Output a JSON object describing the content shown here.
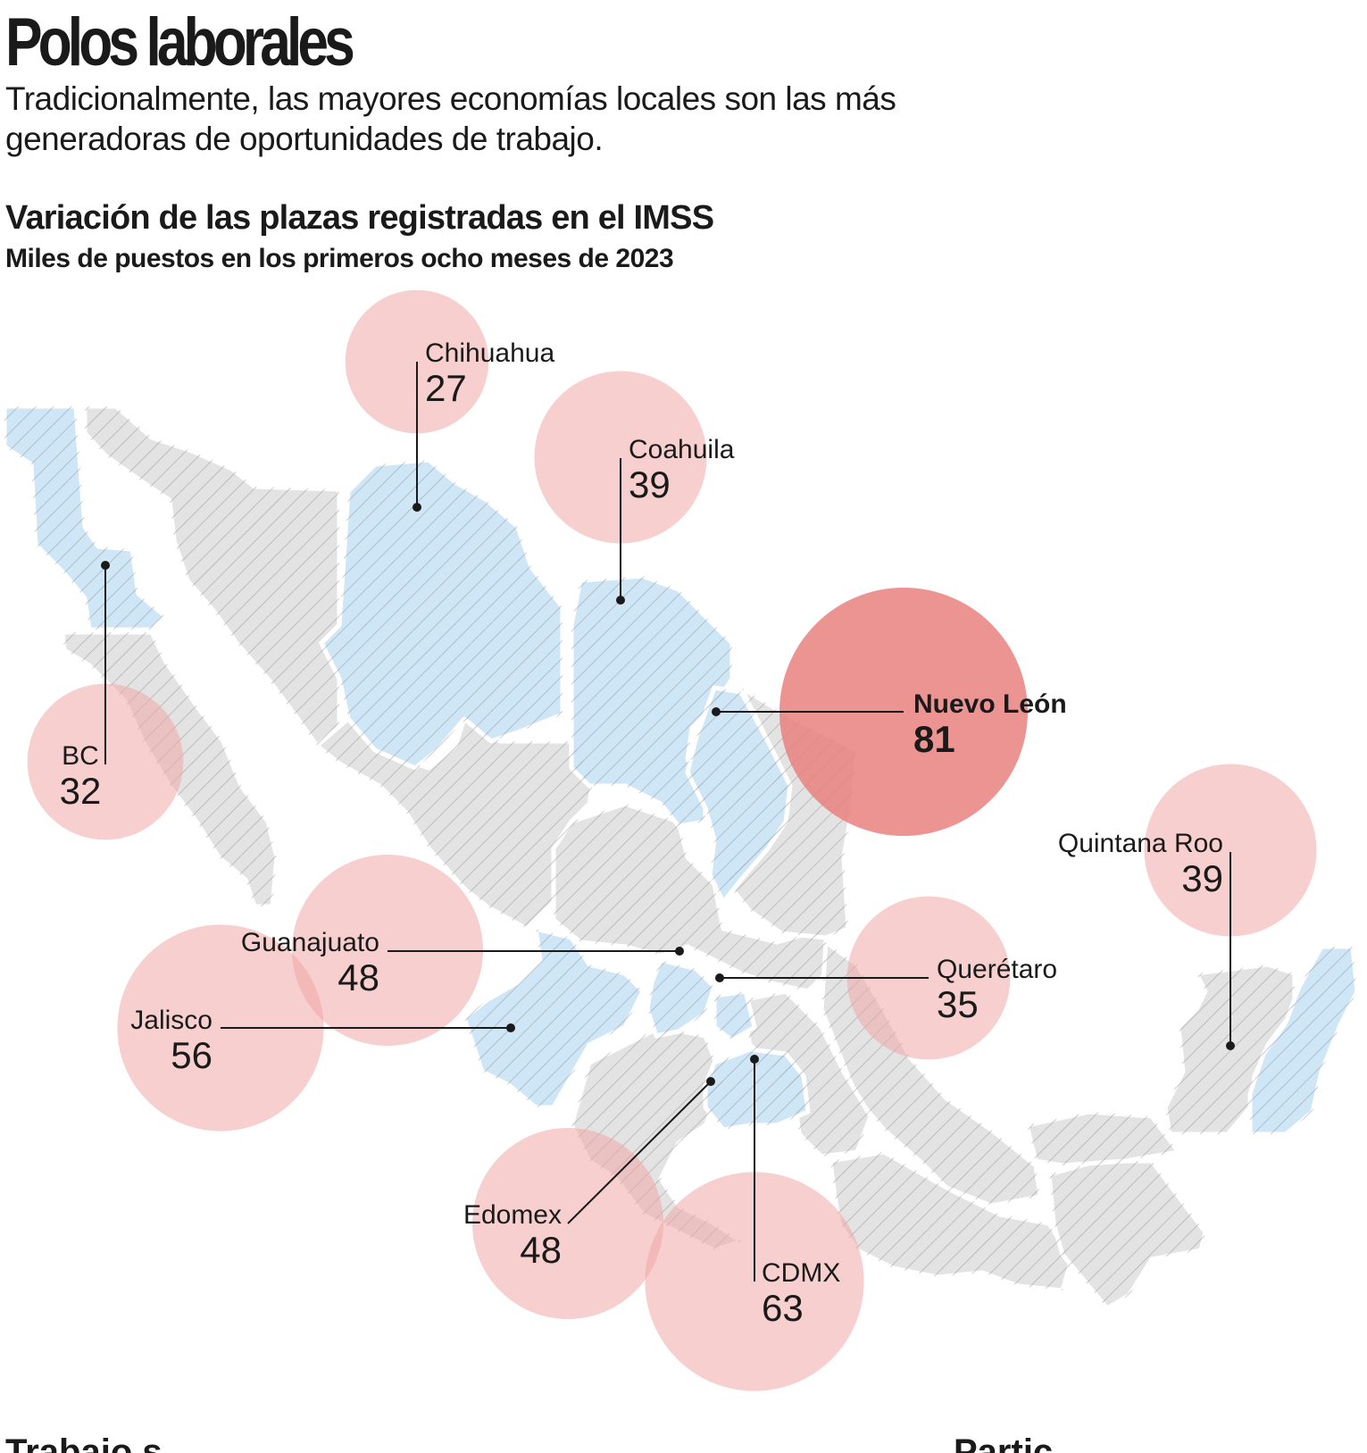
{
  "header": {
    "title": "Polos laborales",
    "deck": "Tradicionalmente, las mayores economías locales son las más generadoras de oportunidades de trabajo."
  },
  "chart": {
    "title": "Variación de las plazas registradas en el IMSS",
    "subtitle": "Miles de puestos en los primeros ocho meses de 2023"
  },
  "colors": {
    "highlight_state": "#cfe6f7",
    "other_state": "#e3e3e3",
    "hatch": "#8a8a8a",
    "bubble": "#f0a8a5",
    "bubble_max": "#e9817e",
    "leader": "#1a1a1a"
  },
  "chart_data": {
    "type": "bubble-map",
    "unit": "Miles de puestos",
    "states": [
      {
        "name": "BC",
        "value": 32
      },
      {
        "name": "Chihuahua",
        "value": 27
      },
      {
        "name": "Coahuila",
        "value": 39
      },
      {
        "name": "Nuevo León",
        "value": 81
      },
      {
        "name": "Quintana Roo",
        "value": 39
      },
      {
        "name": "Querétaro",
        "value": 35
      },
      {
        "name": "Guanajuato",
        "value": 48
      },
      {
        "name": "Jalisco",
        "value": 56
      },
      {
        "name": "Edomex",
        "value": 48
      },
      {
        "name": "CDMX",
        "value": 63
      }
    ]
  },
  "footer": {
    "cutoff_left": "Trabajo s",
    "cutoff_right": "Partic"
  }
}
